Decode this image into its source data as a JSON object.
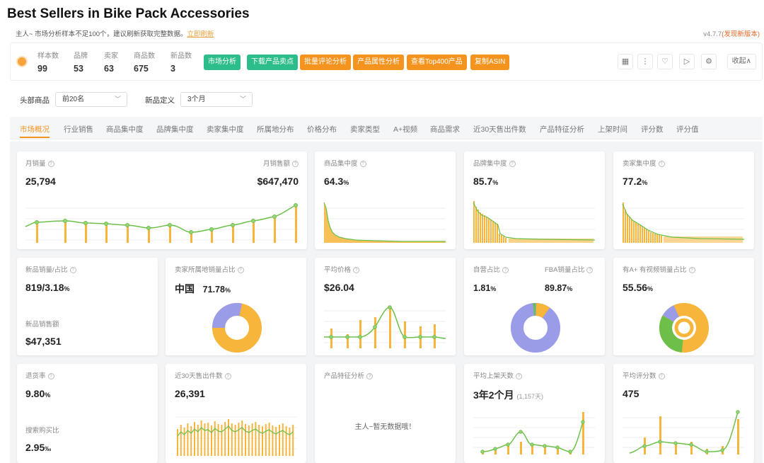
{
  "page": {
    "title": "Best Sellers in Bike Pack Accessories",
    "notice": "主人~ 市场分析样本不足100个，建议刷新获取完整数据。",
    "notice_link": "立即刷新",
    "version": "v4.7.7",
    "version_new": "(发现新版本)"
  },
  "stats": [
    {
      "label": "样本数",
      "value": "99"
    },
    {
      "label": "品牌",
      "value": "53"
    },
    {
      "label": "卖家",
      "value": "63"
    },
    {
      "label": "商品数",
      "value": "675"
    },
    {
      "label": "新品数",
      "value": "3"
    }
  ],
  "actions": [
    "市场分析",
    "下载产品卖点",
    "批量评论分析",
    "产品属性分析",
    "查看Top400产品",
    "复制ASIN"
  ],
  "toolbar_icons": [
    "grid-icon",
    "more-icon",
    "heart-icon",
    "play-icon",
    "settings-icon"
  ],
  "collapse_label": "收起∧",
  "filters": {
    "head_label": "头部商品",
    "head_value": "前20名",
    "new_label": "新品定义",
    "new_value": "3个月"
  },
  "tabs": [
    "市场概况",
    "行业销售",
    "商品集中度",
    "品牌集中度",
    "卖家集中度",
    "所属地分布",
    "价格分布",
    "卖家类型",
    "A+视频",
    "商品需求",
    "近30天售出件数",
    "产品特征分析",
    "上架时间",
    "评分数",
    "评分值"
  ],
  "active_tab": 0,
  "cards": {
    "sales": {
      "label1": "月销量",
      "value1": "25,794",
      "label2": "月销售额",
      "value2": "$647,470"
    },
    "product_conc": {
      "label": "商品集中度",
      "value": "64.3",
      "unit": "%"
    },
    "brand_conc": {
      "label": "品牌集中度",
      "value": "85.7",
      "unit": "%"
    },
    "seller_conc": {
      "label": "卖家集中度",
      "value": "77.2",
      "unit": "%"
    },
    "new_products": {
      "label": "新品销量/占比",
      "value": "819/3.18",
      "unit": "%",
      "label2": "新品销售额",
      "value2": "$47,351"
    },
    "seller_location": {
      "label": "卖家所属地销量占比",
      "country": "中国",
      "value": "71.78",
      "unit": "%"
    },
    "avg_price": {
      "label": "平均价格",
      "value": "$26.04"
    },
    "self_fba": {
      "label1": "自营占比",
      "value1": "1.81",
      "unit1": "%",
      "label2": "FBA销量占比",
      "value2": "89.87",
      "unit2": "%"
    },
    "aplus": {
      "label": "有A+ 有视频销量占比",
      "value": "55.56",
      "unit": "%"
    },
    "returns": {
      "label": "退货率",
      "value": "9.80",
      "unit": "%",
      "label2": "搜索购买比",
      "value2": "2.95",
      "unit2": "‰"
    },
    "sold30": {
      "label": "近30天售出件数",
      "value": "26,391"
    },
    "features": {
      "label": "产品特征分析",
      "empty": "主人~暂无数据哦！"
    },
    "listing_age": {
      "label": "平均上架天数",
      "value": "3年2个月",
      "sub": "(1,157天)"
    },
    "rating_count": {
      "label": "平均评分数",
      "value": "475"
    }
  },
  "colors": {
    "orange": "#f7b53c",
    "green": "#6cc04a",
    "purple": "#9b9ce8",
    "accent": "#f4941f",
    "teal": "#2dbd8a"
  }
}
